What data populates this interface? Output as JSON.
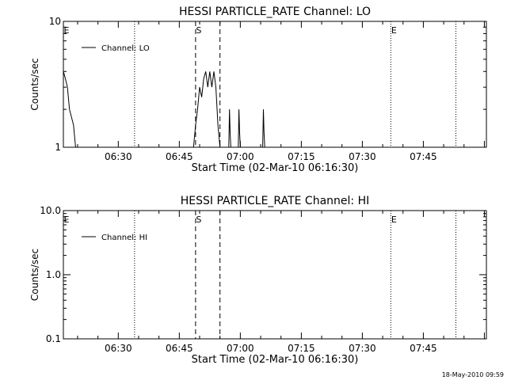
{
  "footer_timestamp": "18-May-2010 09:59",
  "chart_data": [
    {
      "type": "line",
      "title": "HESSI PARTICLE_RATE Channel: LO",
      "xlabel": "Start Time (02-Mar-10 06:16:30)",
      "ylabel": "Counts/sec",
      "y_scale": "log",
      "xlim": [
        "06:16:30",
        "08:00:30"
      ],
      "ylim": [
        1,
        10
      ],
      "x_ticks": [
        "06:30",
        "06:45",
        "07:00",
        "07:15",
        "07:30",
        "07:45"
      ],
      "y_ticks": [
        "1",
        "10"
      ],
      "legend": {
        "entries": [
          "Channel: LO"
        ],
        "placement": "top-left"
      },
      "series": [
        {
          "name": "Channel: LO",
          "color": "#000000",
          "x": [
            "06:16:30",
            "06:17:00",
            "06:17:30",
            "06:18:00",
            "06:19:00",
            "06:19:30",
            "06:48:30",
            "06:49:00",
            "06:49:30",
            "06:50:00",
            "06:50:30",
            "06:51:00",
            "06:51:30",
            "06:52:00",
            "06:52:30",
            "06:53:00",
            "06:53:30",
            "06:54:00",
            "06:54:30",
            "06:55:00",
            "06:57:10",
            "06:57:20",
            "06:57:30",
            "06:57:40",
            "06:59:30",
            "06:59:40",
            "06:59:50",
            "07:00:00",
            "07:05:30",
            "07:05:40",
            "07:05:50",
            "07:06:00"
          ],
          "values": [
            4,
            3.5,
            3,
            2,
            1.5,
            1,
            1,
            1.5,
            2,
            3,
            2.5,
            3.5,
            4,
            3,
            4,
            3,
            4,
            3,
            1.5,
            1,
            1,
            2,
            1.3,
            1,
            1,
            2,
            1.3,
            1,
            1,
            2,
            1.3,
            1
          ]
        }
      ],
      "event_markers": [
        {
          "label": "E",
          "x": "06:16:30",
          "style": "none"
        },
        {
          "label": "",
          "x": "06:34:00",
          "style": "dotted"
        },
        {
          "label": "S",
          "x": "06:49:00",
          "style": "dashed"
        },
        {
          "label": "",
          "x": "06:55:00",
          "style": "dashed"
        },
        {
          "label": "E",
          "x": "07:37:00",
          "style": "dotted"
        },
        {
          "label": "",
          "x": "07:53:00",
          "style": "dotted"
        }
      ],
      "grid": false
    },
    {
      "type": "line",
      "title": "HESSI PARTICLE_RATE Channel: HI",
      "xlabel": "Start Time (02-Mar-10 06:16:30)",
      "ylabel": "Counts/sec",
      "y_scale": "log",
      "xlim": [
        "06:16:30",
        "08:00:30"
      ],
      "ylim": [
        0.1,
        10
      ],
      "x_ticks": [
        "06:30",
        "06:45",
        "07:00",
        "07:15",
        "07:30",
        "07:45"
      ],
      "y_ticks": [
        "0.1",
        "1.0",
        "10.0"
      ],
      "legend": {
        "entries": [
          "Channel: HI"
        ],
        "placement": "top-left"
      },
      "series": [
        {
          "name": "Channel: HI",
          "color": "#000000",
          "x": [],
          "values": []
        }
      ],
      "event_markers": [
        {
          "label": "E",
          "x": "06:16:30",
          "style": "none"
        },
        {
          "label": "",
          "x": "06:34:00",
          "style": "dotted"
        },
        {
          "label": "S",
          "x": "06:49:00",
          "style": "dashed"
        },
        {
          "label": "",
          "x": "06:55:00",
          "style": "dashed"
        },
        {
          "label": "E",
          "x": "07:37:00",
          "style": "dotted"
        },
        {
          "label": "",
          "x": "07:53:00",
          "style": "dotted"
        }
      ],
      "grid": false
    }
  ]
}
